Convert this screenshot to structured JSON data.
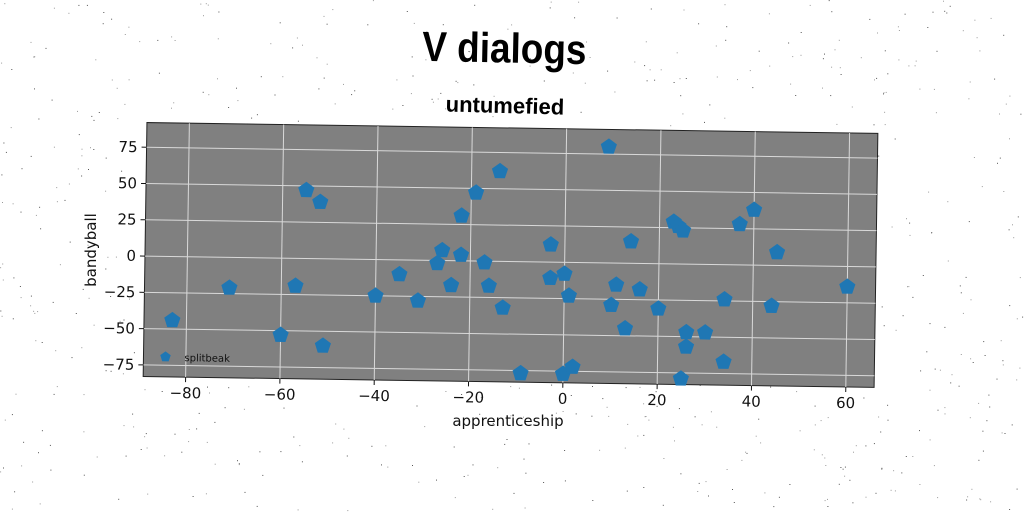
{
  "chart_data": {
    "type": "scatter",
    "title": "V dialogs",
    "subtitle": "untumefied",
    "xlabel": "apprenticeship",
    "ylabel": "bandyball",
    "xlim": [
      -89,
      66
    ],
    "ylim": [
      -83,
      92
    ],
    "xticks": [
      -80,
      -60,
      -40,
      -20,
      0,
      20,
      40,
      60
    ],
    "yticks": [
      -75,
      -50,
      -25,
      0,
      25,
      50,
      75
    ],
    "xtick_labels": [
      "−80",
      "−60",
      "−40",
      "−20",
      "0",
      "20",
      "40",
      "60"
    ],
    "ytick_labels": [
      "−75",
      "−50",
      "−25",
      "0",
      "25",
      "50",
      "75"
    ],
    "grid": true,
    "legend_position": "bottom-left",
    "colors": {
      "background": "#808080",
      "marker": "#1f77b4",
      "grid": "#d9d9d9"
    },
    "marker": "pentagon",
    "series": [
      {
        "name": "splitbeak",
        "points": [
          {
            "x": -83,
            "y": -44
          },
          {
            "x": -71,
            "y": -21
          },
          {
            "x": -60,
            "y": -53
          },
          {
            "x": -57,
            "y": -19
          },
          {
            "x": -55,
            "y": 47
          },
          {
            "x": -52,
            "y": 39
          },
          {
            "x": -51,
            "y": -60
          },
          {
            "x": -40,
            "y": -25
          },
          {
            "x": -35,
            "y": -10
          },
          {
            "x": -31,
            "y": -28
          },
          {
            "x": -26,
            "y": 7
          },
          {
            "x": -27,
            "y": -2
          },
          {
            "x": -24,
            "y": -17
          },
          {
            "x": -22,
            "y": 4
          },
          {
            "x": -22,
            "y": 31
          },
          {
            "x": -19,
            "y": 47
          },
          {
            "x": -17,
            "y": -1
          },
          {
            "x": -16,
            "y": -17
          },
          {
            "x": -14,
            "y": 62
          },
          {
            "x": -13,
            "y": -32
          },
          {
            "x": -9,
            "y": -77
          },
          {
            "x": -3,
            "y": 12
          },
          {
            "x": -3,
            "y": -11
          },
          {
            "x": 0,
            "y": -8
          },
          {
            "x": 0,
            "y": -77
          },
          {
            "x": 1,
            "y": -23
          },
          {
            "x": 2,
            "y": -72
          },
          {
            "x": 9,
            "y": 80
          },
          {
            "x": 10,
            "y": -29
          },
          {
            "x": 11,
            "y": -15
          },
          {
            "x": 13,
            "y": -45
          },
          {
            "x": 14,
            "y": 15
          },
          {
            "x": 16,
            "y": -18
          },
          {
            "x": 20,
            "y": -31
          },
          {
            "x": 23,
            "y": 29
          },
          {
            "x": 24,
            "y": 26
          },
          {
            "x": 25,
            "y": 23
          },
          {
            "x": 25,
            "y": -79
          },
          {
            "x": 26,
            "y": -47
          },
          {
            "x": 26,
            "y": -57
          },
          {
            "x": 30,
            "y": -47
          },
          {
            "x": 34,
            "y": -24
          },
          {
            "x": 34,
            "y": -67
          },
          {
            "x": 37,
            "y": 28
          },
          {
            "x": 40,
            "y": 38
          },
          {
            "x": 44,
            "y": -28
          },
          {
            "x": 45,
            "y": 9
          },
          {
            "x": 60,
            "y": -14
          }
        ]
      }
    ]
  }
}
